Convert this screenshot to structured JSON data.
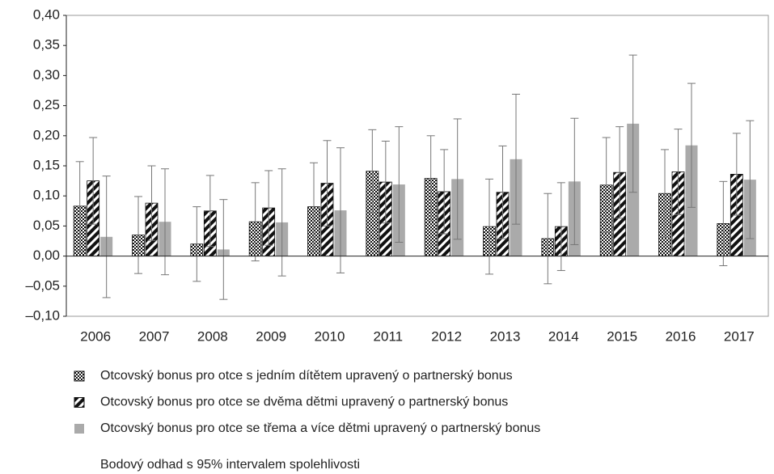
{
  "chart_data": {
    "type": "bar",
    "categories": [
      "2006",
      "2007",
      "2008",
      "2009",
      "2010",
      "2011",
      "2012",
      "2013",
      "2014",
      "2015",
      "2016",
      "2017"
    ],
    "series": [
      {
        "name": "Otcovský bonus pro otce s jedním dítětem upravený o partnerský bonus",
        "color": "#111111",
        "pattern": "checker",
        "values": [
          0.083,
          0.035,
          0.02,
          0.057,
          0.082,
          0.141,
          0.129,
          0.049,
          0.029,
          0.118,
          0.104,
          0.054
        ],
        "errors": [
          0.074,
          0.064,
          0.062,
          0.065,
          0.073,
          0.069,
          0.071,
          0.079,
          0.075,
          0.079,
          0.073,
          0.07
        ]
      },
      {
        "name": "Otcovský bonus pro otce se dvěma dětmi upravený o partnerský bonus",
        "color": "#111111",
        "pattern": "diagonal",
        "values": [
          0.125,
          0.088,
          0.075,
          0.08,
          0.121,
          0.123,
          0.107,
          0.106,
          0.049,
          0.139,
          0.14,
          0.136
        ],
        "errors": [
          0.072,
          0.062,
          0.059,
          0.062,
          0.071,
          0.068,
          0.07,
          0.077,
          0.073,
          0.076,
          0.071,
          0.068
        ]
      },
      {
        "name": "Otcovský bonus pro otce se třema a více dětmi upravený o partnerský bonus",
        "color": "#aaaaaa",
        "pattern": "solid",
        "values": [
          0.032,
          0.057,
          0.011,
          0.056,
          0.076,
          0.119,
          0.128,
          0.161,
          0.124,
          0.22,
          0.184,
          0.127
        ],
        "errors": [
          0.101,
          0.088,
          0.083,
          0.089,
          0.104,
          0.096,
          0.1,
          0.108,
          0.105,
          0.114,
          0.103,
          0.098
        ]
      }
    ],
    "error_bar_label": "Bodový odhad s 95% intervalem spolehlivosti",
    "error_bar_color": "#777777",
    "ylim": [
      -0.1,
      0.4
    ],
    "yticks": [
      {
        "value": -0.1,
        "label": "–0,10"
      },
      {
        "value": -0.05,
        "label": "–0,05"
      },
      {
        "value": 0,
        "label": "0,00"
      },
      {
        "value": 0.05,
        "label": "0,05"
      },
      {
        "value": 0.1,
        "label": "0,10"
      },
      {
        "value": 0.15,
        "label": "0,15"
      },
      {
        "value": 0.2,
        "label": "0,20"
      },
      {
        "value": 0.25,
        "label": "0,25"
      },
      {
        "value": 0.3,
        "label": "0,30"
      },
      {
        "value": 0.35,
        "label": "0,35"
      },
      {
        "value": 0.4,
        "label": "0,40"
      }
    ],
    "grid": false
  }
}
